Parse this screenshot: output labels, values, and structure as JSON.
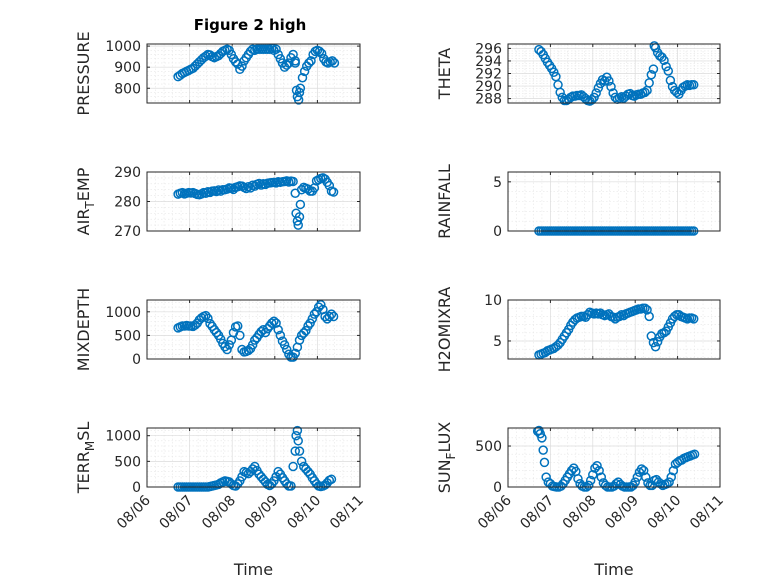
{
  "figure": {
    "title": "Figure 2 high",
    "color": "#0072bd"
  },
  "chart_data": [
    {
      "type": "scatter",
      "title": "Figure 2 high",
      "ylabel": "PRESSURE",
      "xlabel": "",
      "xlim": [
        "08/06",
        "08/11"
      ],
      "ylim": [
        730,
        1010
      ],
      "yticks": [
        800,
        900,
        1000
      ],
      "xticks": [
        "08/06",
        "08/07",
        "08/08",
        "08/09",
        "08/10",
        "08/11"
      ],
      "grid": true,
      "x": [
        0.73,
        0.78,
        0.83,
        0.88,
        0.93,
        0.98,
        1.03,
        1.08,
        1.13,
        1.18,
        1.23,
        1.28,
        1.33,
        1.38,
        1.43,
        1.48,
        1.53,
        1.58,
        1.63,
        1.68,
        1.73,
        1.78,
        1.83,
        1.88,
        1.93,
        1.98,
        2.03,
        2.08,
        2.13,
        2.18,
        2.23,
        2.28,
        2.33,
        2.38,
        2.43,
        2.48,
        2.53,
        2.58,
        2.63,
        2.68,
        2.73,
        2.78,
        2.83,
        2.88,
        2.93,
        2.98,
        3.03,
        3.08,
        3.13,
        3.18,
        3.23,
        3.28,
        3.33,
        3.38,
        3.43,
        3.48,
        3.48,
        3.51,
        3.53,
        3.56,
        3.58,
        3.6,
        3.65,
        3.7,
        3.75,
        3.8,
        3.85,
        3.9,
        3.95,
        4.0,
        4.05,
        4.1,
        4.15,
        4.2,
        4.25,
        4.3,
        4.35,
        4.4
      ],
      "y": [
        855,
        862,
        870,
        875,
        880,
        885,
        890,
        895,
        905,
        915,
        925,
        935,
        945,
        952,
        960,
        958,
        950,
        945,
        950,
        955,
        965,
        975,
        980,
        985,
        980,
        960,
        940,
        925,
        915,
        890,
        905,
        930,
        945,
        960,
        975,
        985,
        980,
        985,
        985,
        985,
        985,
        985,
        985,
        985,
        990,
        980,
        985,
        960,
        940,
        920,
        900,
        910,
        920,
        945,
        960,
        930,
        920,
        790,
        760,
        745,
        780,
        800,
        850,
        880,
        905,
        920,
        930,
        960,
        975,
        980,
        975,
        965,
        940,
        925,
        920,
        925,
        930,
        920
      ]
    },
    {
      "type": "scatter",
      "ylabel": "THETA",
      "xlabel": "",
      "xlim": [
        "08/06",
        "08/11"
      ],
      "ylim": [
        287.3,
        296.7
      ],
      "yticks": [
        288,
        290,
        292,
        294,
        296
      ],
      "xticks": [
        "08/06",
        "08/07",
        "08/08",
        "08/09",
        "08/10",
        "08/11"
      ],
      "grid": true,
      "x": [
        0.73,
        0.78,
        0.83,
        0.88,
        0.93,
        0.98,
        1.03,
        1.08,
        1.13,
        1.18,
        1.23,
        1.28,
        1.33,
        1.38,
        1.43,
        1.48,
        1.53,
        1.58,
        1.63,
        1.68,
        1.73,
        1.78,
        1.83,
        1.88,
        1.93,
        1.98,
        2.03,
        2.08,
        2.13,
        2.18,
        2.23,
        2.28,
        2.33,
        2.38,
        2.43,
        2.48,
        2.53,
        2.58,
        2.63,
        2.68,
        2.73,
        2.78,
        2.83,
        2.88,
        2.93,
        2.98,
        3.03,
        3.08,
        3.13,
        3.18,
        3.23,
        3.28,
        3.33,
        3.38,
        3.43,
        3.45,
        3.48,
        3.53,
        3.58,
        3.63,
        3.68,
        3.73,
        3.78,
        3.83,
        3.88,
        3.93,
        3.98,
        4.03,
        4.08,
        4.13,
        4.18,
        4.23,
        4.28,
        4.33,
        4.38
      ],
      "y": [
        295.8,
        295.5,
        295,
        294.4,
        293.8,
        293.3,
        292.8,
        292.2,
        291.5,
        290.2,
        289,
        288.2,
        287.7,
        287.7,
        287.9,
        288.2,
        288.4,
        288.4,
        288.5,
        288.5,
        288.6,
        288.3,
        288,
        287.7,
        287.6,
        287.8,
        288.2,
        288.9,
        289.7,
        290.4,
        291,
        290.8,
        291.4,
        290.8,
        289.9,
        288.9,
        288.2,
        287.9,
        288.1,
        288.3,
        288.1,
        288.4,
        288.7,
        288.8,
        288.5,
        288.4,
        288.6,
        288.7,
        288.7,
        288.9,
        289,
        289.3,
        290.5,
        291.8,
        292.7,
        296.4,
        296.1,
        295.3,
        294.8,
        294.6,
        294.1,
        293.1,
        292.4,
        290.9,
        289.9,
        289.3,
        289,
        288.7,
        289.3,
        289.8,
        290,
        290.2,
        290.1,
        290.2,
        290.2
      ]
    },
    {
      "type": "scatter",
      "ylabel": "AIR_TEMP",
      "xlabel": "",
      "xlim": [
        "08/06",
        "08/11"
      ],
      "ylim": [
        270,
        290
      ],
      "yticks": [
        270,
        280,
        290
      ],
      "xticks": [
        "08/06",
        "08/07",
        "08/08",
        "08/09",
        "08/10",
        "08/11"
      ],
      "grid": true,
      "x": [
        0.73,
        0.78,
        0.83,
        0.88,
        0.93,
        0.98,
        1.03,
        1.08,
        1.13,
        1.18,
        1.23,
        1.28,
        1.33,
        1.38,
        1.43,
        1.48,
        1.53,
        1.58,
        1.63,
        1.68,
        1.73,
        1.78,
        1.83,
        1.88,
        1.93,
        1.98,
        2.03,
        2.08,
        2.13,
        2.18,
        2.23,
        2.28,
        2.33,
        2.38,
        2.43,
        2.48,
        2.53,
        2.58,
        2.63,
        2.68,
        2.73,
        2.78,
        2.83,
        2.88,
        2.93,
        2.98,
        3.03,
        3.08,
        3.13,
        3.18,
        3.23,
        3.28,
        3.33,
        3.38,
        3.43,
        3.48,
        3.5,
        3.53,
        3.55,
        3.58,
        3.6,
        3.63,
        3.68,
        3.73,
        3.78,
        3.83,
        3.88,
        3.93,
        3.98,
        4.03,
        4.08,
        4.13,
        4.18,
        4.23,
        4.28,
        4.33,
        4.38
      ],
      "y": [
        282.5,
        282.8,
        283,
        282.6,
        282.8,
        283,
        282.9,
        283,
        282.7,
        282.4,
        282.3,
        282.6,
        283,
        282.8,
        283.3,
        283.1,
        283.5,
        283.6,
        283.4,
        283.9,
        283.5,
        284,
        284,
        284.2,
        284.6,
        284.5,
        284.1,
        284.8,
        285,
        285.3,
        285.2,
        284.8,
        284.4,
        285,
        284.6,
        285.5,
        285.2,
        285.8,
        286.1,
        285.6,
        286,
        285.8,
        286.2,
        286.3,
        286.4,
        286.5,
        286.3,
        286.7,
        286.5,
        286.7,
        286.8,
        287,
        286.6,
        286.9,
        286.8,
        282.8,
        276,
        273.4,
        272,
        274.8,
        279,
        284,
        284.8,
        284.5,
        284.2,
        283.5,
        283.5,
        284.6,
        287,
        287.4,
        287.8,
        288,
        287.6,
        286.5,
        285.4,
        283.5,
        283.2
      ]
    },
    {
      "type": "scatter",
      "ylabel": "RAINFALL",
      "xlabel": "",
      "xlim": [
        "08/06",
        "08/11"
      ],
      "ylim": [
        0,
        6
      ],
      "yticks": [
        0,
        5
      ],
      "xticks": [
        "08/06",
        "08/07",
        "08/08",
        "08/09",
        "08/10",
        "08/11"
      ],
      "grid": true,
      "x": [
        0.73,
        0.78,
        0.83,
        0.88,
        0.93,
        0.98,
        1.03,
        1.08,
        1.13,
        1.18,
        1.23,
        1.28,
        1.33,
        1.38,
        1.43,
        1.48,
        1.53,
        1.58,
        1.63,
        1.68,
        1.73,
        1.78,
        1.83,
        1.88,
        1.93,
        1.98,
        2.03,
        2.08,
        2.13,
        2.18,
        2.23,
        2.28,
        2.33,
        2.38,
        2.43,
        2.48,
        2.53,
        2.58,
        2.63,
        2.68,
        2.73,
        2.78,
        2.83,
        2.88,
        2.93,
        2.98,
        3.03,
        3.08,
        3.13,
        3.18,
        3.23,
        3.28,
        3.33,
        3.38,
        3.43,
        3.48,
        3.53,
        3.58,
        3.63,
        3.68,
        3.73,
        3.78,
        3.83,
        3.88,
        3.93,
        3.98,
        4.03,
        4.08,
        4.13,
        4.18,
        4.23,
        4.28,
        4.33,
        4.38
      ],
      "y": [
        0,
        0,
        0,
        0,
        0,
        0,
        0,
        0,
        0,
        0,
        0,
        0,
        0,
        0,
        0,
        0,
        0,
        0,
        0,
        0,
        0,
        0,
        0,
        0,
        0,
        0,
        0,
        0,
        0,
        0,
        0,
        0,
        0,
        0,
        0,
        0,
        0,
        0,
        0,
        0,
        0,
        0,
        0,
        0,
        0,
        0,
        0,
        0,
        0,
        0,
        0,
        0,
        0,
        0,
        0,
        0,
        0,
        0,
        0,
        0,
        0,
        0,
        0,
        0,
        0,
        0,
        0,
        0,
        0,
        0,
        0,
        0,
        0,
        0
      ]
    },
    {
      "type": "scatter",
      "ylabel": "MIXDEPTH",
      "xlabel": "",
      "xlim": [
        "08/06",
        "08/11"
      ],
      "ylim": [
        0,
        1250
      ],
      "yticks": [
        0,
        500,
        1000
      ],
      "xticks": [
        "08/06",
        "08/07",
        "08/08",
        "08/09",
        "08/10",
        "08/11"
      ],
      "grid": true,
      "x": [
        0.73,
        0.78,
        0.83,
        0.88,
        0.93,
        0.98,
        1.03,
        1.08,
        1.13,
        1.18,
        1.23,
        1.28,
        1.33,
        1.38,
        1.43,
        1.48,
        1.53,
        1.58,
        1.63,
        1.68,
        1.73,
        1.78,
        1.83,
        1.88,
        1.93,
        1.98,
        2.03,
        2.08,
        2.13,
        2.18,
        2.23,
        2.28,
        2.33,
        2.38,
        2.43,
        2.48,
        2.53,
        2.58,
        2.63,
        2.68,
        2.73,
        2.78,
        2.83,
        2.88,
        2.93,
        2.98,
        3.03,
        3.08,
        3.13,
        3.18,
        3.23,
        3.28,
        3.33,
        3.38,
        3.43,
        3.48,
        3.53,
        3.58,
        3.63,
        3.68,
        3.73,
        3.78,
        3.83,
        3.88,
        3.93,
        3.98,
        4.03,
        4.08,
        4.13,
        4.18,
        4.23,
        4.28,
        4.33,
        4.38
      ],
      "y": [
        660,
        680,
        700,
        700,
        710,
        700,
        700,
        690,
        720,
        760,
        830,
        870,
        900,
        920,
        860,
        750,
        690,
        620,
        560,
        500,
        420,
        330,
        260,
        200,
        300,
        400,
        560,
        680,
        700,
        500,
        200,
        150,
        160,
        180,
        220,
        300,
        400,
        450,
        520,
        580,
        620,
        560,
        640,
        700,
        760,
        800,
        760,
        620,
        500,
        380,
        300,
        200,
        100,
        40,
        40,
        120,
        250,
        400,
        500,
        550,
        600,
        700,
        760,
        850,
        950,
        1000,
        1100,
        1150,
        1050,
        900,
        850,
        900,
        950,
        900
      ]
    },
    {
      "type": "scatter",
      "ylabel": "H2OMIXRA",
      "xlabel": "",
      "xlim": [
        "08/06",
        "08/11"
      ],
      "ylim": [
        2.8,
        10
      ],
      "yticks": [
        5,
        10
      ],
      "xticks": [
        "08/06",
        "08/07",
        "08/08",
        "08/09",
        "08/10",
        "08/11"
      ],
      "grid": true,
      "x": [
        0.73,
        0.78,
        0.83,
        0.88,
        0.93,
        0.98,
        1.03,
        1.08,
        1.13,
        1.18,
        1.23,
        1.28,
        1.33,
        1.38,
        1.43,
        1.48,
        1.53,
        1.58,
        1.63,
        1.68,
        1.73,
        1.78,
        1.83,
        1.88,
        1.93,
        1.98,
        2.03,
        2.08,
        2.13,
        2.18,
        2.23,
        2.28,
        2.33,
        2.38,
        2.43,
        2.48,
        2.53,
        2.58,
        2.63,
        2.68,
        2.73,
        2.78,
        2.83,
        2.88,
        2.93,
        2.98,
        3.03,
        3.08,
        3.13,
        3.18,
        3.23,
        3.28,
        3.33,
        3.38,
        3.43,
        3.48,
        3.53,
        3.58,
        3.63,
        3.68,
        3.73,
        3.78,
        3.83,
        3.88,
        3.93,
        3.98,
        4.03,
        4.08,
        4.13,
        4.18,
        4.23,
        4.28,
        4.33,
        4.38
      ],
      "y": [
        3.3,
        3.4,
        3.5,
        3.6,
        3.8,
        3.9,
        4,
        4.1,
        4.3,
        4.5,
        4.8,
        5.2,
        5.6,
        6,
        6.4,
        6.9,
        7.3,
        7.6,
        7.8,
        7.9,
        8,
        8,
        7.9,
        8.2,
        8.5,
        8.4,
        8.3,
        8.4,
        8.3,
        8.4,
        8.2,
        8.1,
        8.2,
        8.3,
        8,
        7.9,
        7.7,
        7.9,
        8,
        8.2,
        8.1,
        8.3,
        8.4,
        8.5,
        8.6,
        8.7,
        8.8,
        8.9,
        8.9,
        9,
        9,
        8.8,
        8,
        5.6,
        4.8,
        4.3,
        4.9,
        5.5,
        5.9,
        6,
        6.2,
        6.7,
        7.2,
        7.7,
        8,
        8.2,
        8.2,
        8,
        7.9,
        7.8,
        7.7,
        7.8,
        7.8,
        7.7
      ]
    },
    {
      "type": "scatter",
      "ylabel": "TERR_MSL",
      "xlabel": "Time",
      "xlim": [
        "08/06",
        "08/11"
      ],
      "ylim": [
        0,
        1150
      ],
      "yticks": [
        0,
        500,
        1000
      ],
      "xticks": [
        "08/06",
        "08/07",
        "08/08",
        "08/09",
        "08/10",
        "08/11"
      ],
      "grid": true,
      "x": [
        0.73,
        0.78,
        0.83,
        0.88,
        0.93,
        0.98,
        1.03,
        1.08,
        1.13,
        1.18,
        1.23,
        1.28,
        1.33,
        1.38,
        1.43,
        1.48,
        1.53,
        1.58,
        1.63,
        1.68,
        1.73,
        1.78,
        1.83,
        1.88,
        1.93,
        1.98,
        2.03,
        2.08,
        2.13,
        2.18,
        2.23,
        2.28,
        2.33,
        2.38,
        2.43,
        2.48,
        2.53,
        2.58,
        2.63,
        2.68,
        2.73,
        2.78,
        2.83,
        2.88,
        2.93,
        2.98,
        3.03,
        3.08,
        3.13,
        3.18,
        3.23,
        3.28,
        3.33,
        3.38,
        3.43,
        3.48,
        3.5,
        3.53,
        3.55,
        3.58,
        3.63,
        3.68,
        3.73,
        3.78,
        3.83,
        3.88,
        3.93,
        3.98,
        4.03,
        4.08,
        4.13,
        4.18,
        4.23,
        4.28,
        4.33
      ],
      "y": [
        0,
        0,
        0,
        0,
        0,
        0,
        0,
        0,
        0,
        0,
        0,
        0,
        0,
        0,
        0,
        10,
        20,
        30,
        40,
        50,
        80,
        100,
        120,
        110,
        100,
        60,
        30,
        20,
        60,
        120,
        200,
        300,
        280,
        260,
        300,
        350,
        400,
        320,
        250,
        200,
        150,
        100,
        50,
        30,
        60,
        120,
        200,
        300,
        250,
        180,
        120,
        60,
        20,
        20,
        400,
        700,
        1000,
        1100,
        900,
        700,
        500,
        400,
        350,
        300,
        250,
        180,
        120,
        60,
        20,
        10,
        20,
        40,
        80,
        130,
        150
      ]
    },
    {
      "type": "scatter",
      "ylabel": "SUN_FLUX",
      "xlabel": "Time",
      "xlim": [
        "08/06",
        "08/11"
      ],
      "ylim": [
        0,
        720
      ],
      "yticks": [
        0,
        500
      ],
      "xticks": [
        "08/06",
        "08/07",
        "08/08",
        "08/09",
        "08/10",
        "08/11"
      ],
      "grid": true,
      "x": [
        0.7,
        0.73,
        0.76,
        0.8,
        0.83,
        0.86,
        0.9,
        0.95,
        1.0,
        1.05,
        1.1,
        1.15,
        1.2,
        1.25,
        1.3,
        1.35,
        1.4,
        1.45,
        1.5,
        1.55,
        1.6,
        1.65,
        1.7,
        1.75,
        1.8,
        1.85,
        1.9,
        1.95,
        2.0,
        2.05,
        2.1,
        2.15,
        2.2,
        2.25,
        2.3,
        2.35,
        2.4,
        2.45,
        2.5,
        2.55,
        2.6,
        2.65,
        2.7,
        2.75,
        2.8,
        2.85,
        2.9,
        2.95,
        3.0,
        3.05,
        3.1,
        3.15,
        3.2,
        3.25,
        3.3,
        3.35,
        3.4,
        3.45,
        3.5,
        3.55,
        3.6,
        3.65,
        3.7,
        3.75,
        3.8,
        3.85,
        3.9,
        3.95,
        4.0,
        4.05,
        4.1,
        4.15,
        4.2,
        4.25,
        4.3,
        4.35,
        4.4
      ],
      "y": [
        680,
        690,
        650,
        600,
        450,
        300,
        120,
        60,
        40,
        10,
        5,
        0,
        0,
        10,
        40,
        80,
        120,
        160,
        200,
        230,
        190,
        100,
        40,
        10,
        0,
        0,
        20,
        80,
        150,
        230,
        260,
        200,
        120,
        50,
        20,
        0,
        0,
        0,
        10,
        40,
        60,
        30,
        10,
        0,
        0,
        0,
        0,
        20,
        60,
        120,
        180,
        220,
        200,
        120,
        50,
        20,
        20,
        80,
        90,
        60,
        40,
        20,
        30,
        40,
        60,
        120,
        200,
        280,
        300,
        320,
        330,
        350,
        360,
        370,
        380,
        390,
        400
      ]
    }
  ]
}
